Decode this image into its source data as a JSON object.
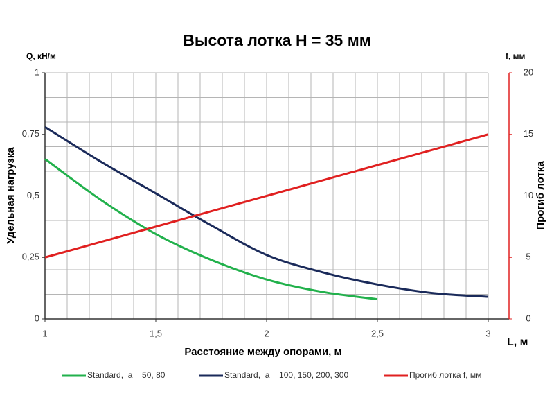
{
  "chart_data": {
    "type": "line",
    "title": "Высота лотка Н = 35 мм",
    "y_label_top": "Q, кН/м",
    "y2_label_top": "f, мм",
    "ylabel": "Удельная нагрузка",
    "y2label": "Прогиб лотка",
    "xlabel": "Расстояние между опорами, м",
    "x_label_end": "L, м",
    "xlim": [
      1,
      3
    ],
    "xticks": [
      1,
      {
        "value": 1.5,
        "label": "1,5"
      },
      2,
      {
        "value": 2.5,
        "label": "2,5"
      },
      3
    ],
    "ylim": [
      0,
      1
    ],
    "yticks": [
      0,
      {
        "value": 0.25,
        "label": "0,25"
      },
      {
        "value": 0.5,
        "label": "0,5"
      },
      {
        "value": 0.75,
        "label": "0,75"
      },
      1
    ],
    "y2lim": [
      0,
      20
    ],
    "y2ticks": [
      0,
      5,
      10,
      15,
      20
    ],
    "y2color": "#e02020",
    "grid": true,
    "xgrid": [
      1,
      1.1,
      1.2,
      1.3,
      1.4,
      1.5,
      1.6,
      1.7,
      1.8,
      1.9,
      2,
      2.1,
      2.2,
      2.3,
      2.4,
      2.5,
      2.6,
      2.7,
      2.8,
      2.9,
      3
    ],
    "ygrid": [
      0,
      0.1,
      0.2,
      0.3,
      0.4,
      0.5,
      0.6,
      0.7,
      0.8,
      0.9,
      1
    ],
    "legend": "bottom",
    "series": [
      {
        "name": "Standard,  a = 50, 80",
        "color": "#22b14c",
        "x": [
          1,
          1.25,
          1.5,
          1.75,
          2,
          2.25,
          2.5
        ],
        "values": [
          0.65,
          0.485,
          0.345,
          0.24,
          0.16,
          0.11,
          0.08
        ]
      },
      {
        "name": "Standard,  a = 100, 150, 200, 300",
        "color": "#1a2a5a",
        "x": [
          1,
          1.25,
          1.5,
          1.75,
          2,
          2.25,
          2.5,
          2.75,
          3
        ],
        "values": [
          0.78,
          0.64,
          0.51,
          0.38,
          0.26,
          0.19,
          0.14,
          0.105,
          0.09
        ]
      },
      {
        "name": "Прогиб лотка f, мм",
        "color": "#e02020",
        "axis": "y2",
        "x": [
          1,
          1.5,
          2,
          2.5,
          3
        ],
        "values": [
          5,
          7.5,
          10,
          12.5,
          15
        ]
      }
    ]
  }
}
